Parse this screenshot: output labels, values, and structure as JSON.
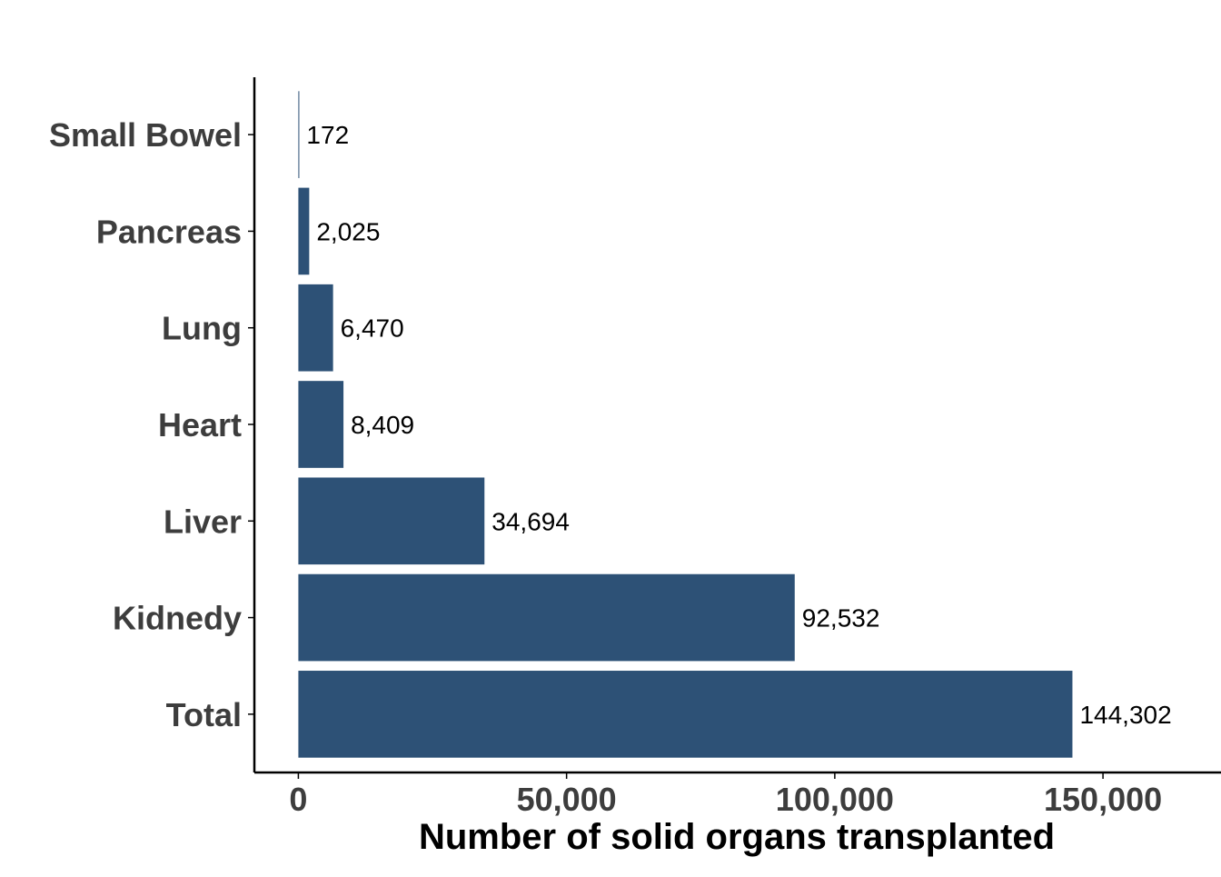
{
  "chart_data": {
    "type": "bar",
    "orientation": "horizontal",
    "categories": [
      "Total",
      "Kidnedy",
      "Liver",
      "Heart",
      "Lung",
      "Pancreas",
      "Small Bowel"
    ],
    "values": [
      144302,
      92532,
      34694,
      8409,
      6470,
      2025,
      172
    ],
    "value_labels": [
      "144,302",
      "92,532",
      "34,694",
      "8,409",
      "6,470",
      "2,025",
      "172"
    ],
    "xlabel": "Number of solid organs transplanted",
    "ylabel": "",
    "xlim": [
      -8200,
      172000
    ],
    "xticks": [
      0,
      50000,
      100000,
      150000
    ],
    "xtick_labels": [
      "0",
      "50,000",
      "100,000",
      "150,000"
    ],
    "grid": false,
    "legend": "none",
    "bar_color": "#2d5176",
    "axis_color": "#000000",
    "label_color": "#3d3d3d"
  }
}
